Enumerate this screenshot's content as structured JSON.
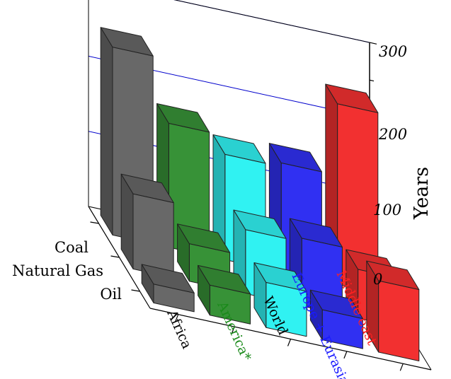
{
  "chart_data": {
    "type": "bar3d",
    "categories": [
      "Africa",
      "America*",
      "World",
      "Europe + Eurasia",
      "Middle east"
    ],
    "category_colors": [
      "#000000",
      "#1a8a1a",
      "#000000",
      "#1a1aff",
      "#ff2020"
    ],
    "rows": [
      "Coal",
      "Natural Gas",
      "Oil"
    ],
    "series": [
      {
        "name": "Coal",
        "values": [
          250,
          165,
          140,
          145,
          240
        ]
      },
      {
        "name": "Natural Gas",
        "values": [
          100,
          50,
          85,
          90,
          65
        ]
      },
      {
        "name": "Oil",
        "values": [
          25,
          40,
          60,
          40,
          95
        ]
      }
    ],
    "bar_colors": [
      "#6d6d6d",
      "#3a9a3a",
      "#33ffff",
      "#3333ff",
      "#ff3333"
    ],
    "zlabel": "Years",
    "zlim": [
      0,
      300
    ],
    "zticks": [
      "0",
      "100",
      "200",
      "300"
    ]
  }
}
